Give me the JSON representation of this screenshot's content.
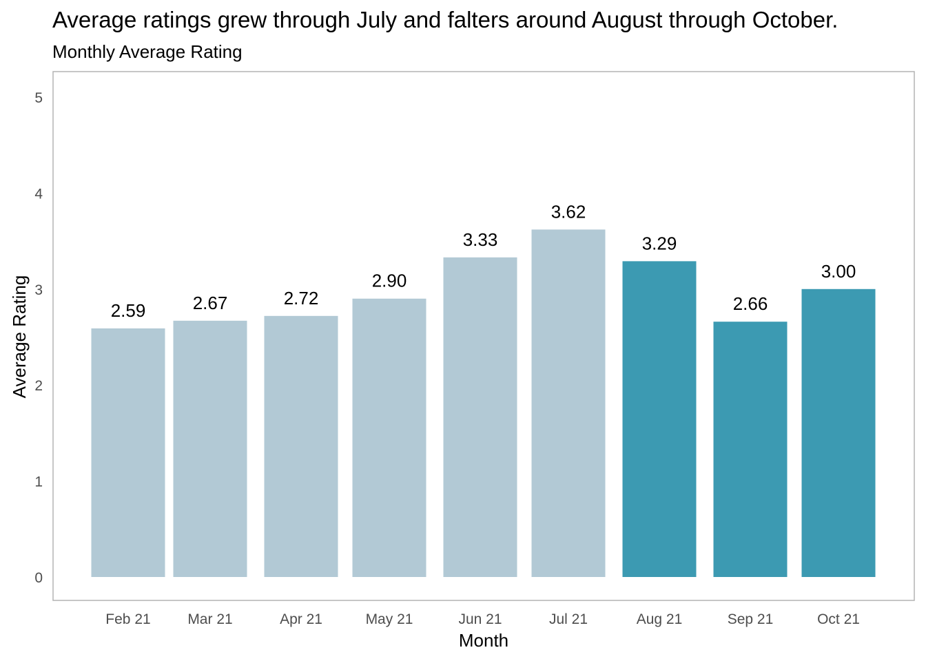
{
  "chart_data": {
    "type": "bar",
    "title": "Average ratings grew through July and falters around August through October.",
    "subtitle": "Monthly Average Rating",
    "xlabel": "Month",
    "ylabel": "Average Rating",
    "categories": [
      "Feb 21",
      "Mar 21",
      "Apr 21",
      "May 21",
      "Jun 21",
      "Jul 21",
      "Aug 21",
      "Sep 21",
      "Oct 21"
    ],
    "values": [
      2.59,
      2.67,
      2.72,
      2.9,
      3.33,
      3.62,
      3.29,
      2.66,
      3.0
    ],
    "value_labels": [
      "2.59",
      "2.67",
      "2.72",
      "2.90",
      "3.33",
      "3.62",
      "3.29",
      "2.66",
      "3.00"
    ],
    "highlighted": [
      false,
      false,
      false,
      false,
      false,
      false,
      true,
      true,
      true
    ],
    "ylim": [
      0,
      5
    ],
    "yticks": [
      0,
      1,
      2,
      3,
      4,
      5
    ],
    "grid": false,
    "legend": "none",
    "colors": {
      "bar_default": "#b2c9d5",
      "bar_highlight": "#3c9ab2",
      "panel_border": "#b3b3b3",
      "tick_text": "#4d4d4d",
      "label_text": "#000000"
    }
  }
}
